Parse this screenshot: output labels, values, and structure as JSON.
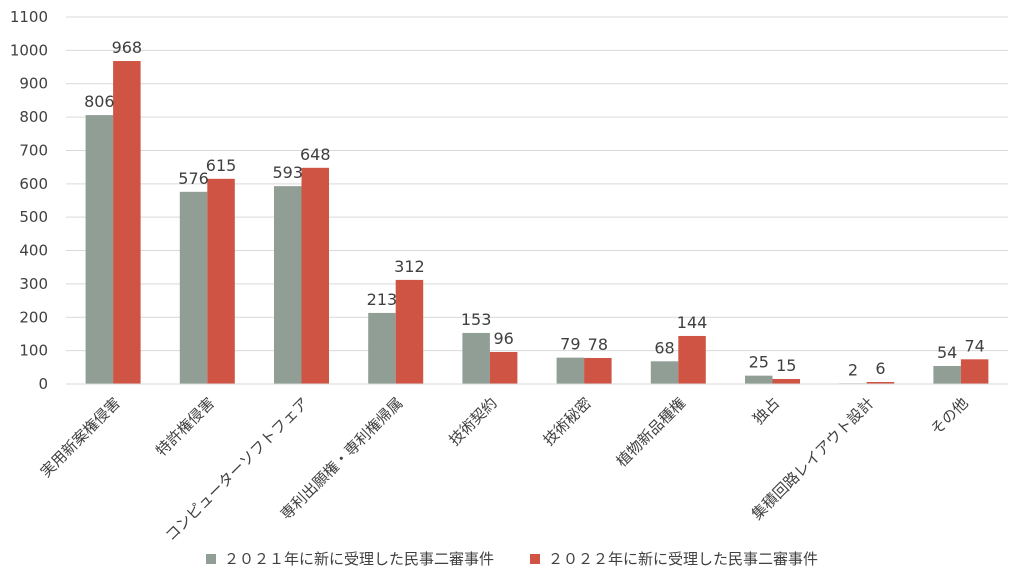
{
  "chart_data": {
    "type": "bar",
    "categories": [
      "実用新案権侵害",
      "特許権侵害",
      "コンピューターソフトフェア",
      "専利出願権・専利権帰属",
      "技術契約",
      "技術秘密",
      "植物新品種権",
      "独占",
      "集積回路レイアウト設計",
      "その他"
    ],
    "series": [
      {
        "name": "２０２１年に新に受理した民事二審事件",
        "values": [
          806,
          576,
          593,
          213,
          153,
          79,
          68,
          25,
          2,
          54
        ],
        "color": "#909E95"
      },
      {
        "name": "２０２２年に新に受理した民事二審事件",
        "values": [
          968,
          615,
          648,
          312,
          96,
          78,
          144,
          15,
          6,
          74
        ],
        "color": "#CF5443"
      }
    ],
    "ylim": [
      0,
      1100
    ],
    "yticks": [
      "0",
      "100",
      "200",
      "300",
      "400",
      "500",
      "600",
      "700",
      "800",
      "900",
      "1000",
      "1100"
    ],
    "grid": true,
    "legend_position": "bottom",
    "title": "",
    "xlabel": "",
    "ylabel": ""
  }
}
